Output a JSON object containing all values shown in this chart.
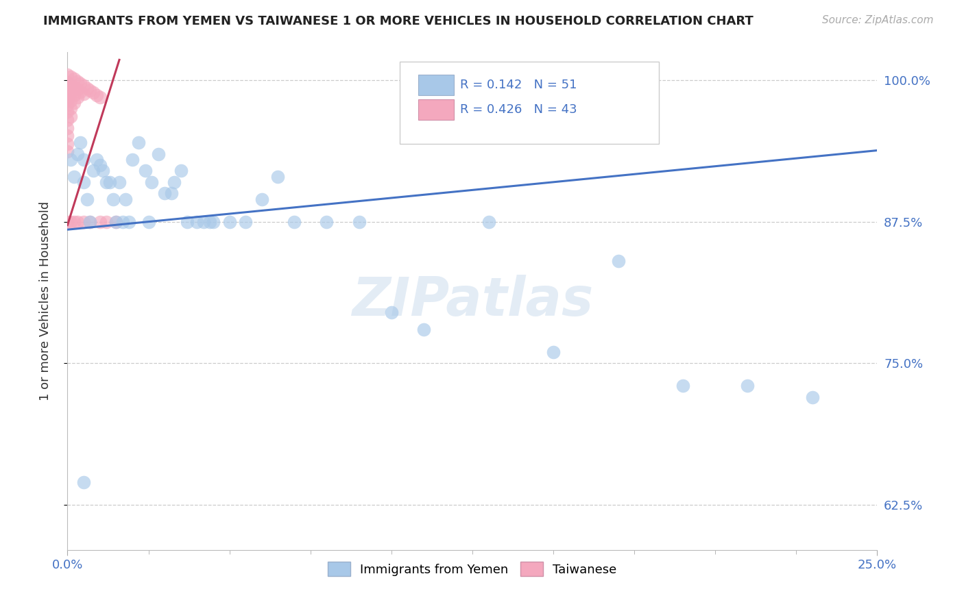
{
  "title": "IMMIGRANTS FROM YEMEN VS TAIWANESE 1 OR MORE VEHICLES IN HOUSEHOLD CORRELATION CHART",
  "source": "Source: ZipAtlas.com",
  "ylabel": "1 or more Vehicles in Household",
  "xlim": [
    0.0,
    0.25
  ],
  "ylim": [
    0.585,
    1.025
  ],
  "legend_blue_label": "Immigrants from Yemen",
  "legend_pink_label": "Taiwanese",
  "blue_R": "0.142",
  "blue_N": "51",
  "pink_R": "0.426",
  "pink_N": "43",
  "blue_color": "#a8c8e8",
  "pink_color": "#f4a8be",
  "blue_line_color": "#4472c4",
  "pink_line_color": "#c0395a",
  "ytick_vals": [
    0.625,
    0.75,
    0.875,
    1.0
  ],
  "ytick_labels": [
    "62.5%",
    "75.0%",
    "87.5%",
    "100.0%"
  ],
  "xtick_vals": [
    0.0,
    0.25
  ],
  "xtick_labels": [
    "0.0%",
    "25.0%"
  ],
  "blue_trend_x": [
    0.0,
    0.25
  ],
  "blue_trend_y": [
    0.868,
    0.938
  ],
  "pink_trend_x": [
    0.0,
    0.016
  ],
  "pink_trend_y": [
    0.872,
    1.018
  ],
  "blue_points": [
    [
      0.001,
      0.93
    ],
    [
      0.002,
      0.915
    ],
    [
      0.003,
      0.935
    ],
    [
      0.004,
      0.945
    ],
    [
      0.005,
      0.93
    ],
    [
      0.005,
      0.91
    ],
    [
      0.006,
      0.895
    ],
    [
      0.007,
      0.875
    ],
    [
      0.008,
      0.92
    ],
    [
      0.009,
      0.93
    ],
    [
      0.01,
      0.925
    ],
    [
      0.011,
      0.92
    ],
    [
      0.012,
      0.91
    ],
    [
      0.013,
      0.91
    ],
    [
      0.014,
      0.895
    ],
    [
      0.015,
      0.875
    ],
    [
      0.016,
      0.91
    ],
    [
      0.017,
      0.875
    ],
    [
      0.018,
      0.895
    ],
    [
      0.019,
      0.875
    ],
    [
      0.02,
      0.93
    ],
    [
      0.022,
      0.945
    ],
    [
      0.024,
      0.92
    ],
    [
      0.025,
      0.875
    ],
    [
      0.026,
      0.91
    ],
    [
      0.028,
      0.935
    ],
    [
      0.03,
      0.9
    ],
    [
      0.032,
      0.9
    ],
    [
      0.033,
      0.91
    ],
    [
      0.035,
      0.92
    ],
    [
      0.037,
      0.875
    ],
    [
      0.04,
      0.875
    ],
    [
      0.042,
      0.875
    ],
    [
      0.044,
      0.875
    ],
    [
      0.045,
      0.875
    ],
    [
      0.05,
      0.875
    ],
    [
      0.055,
      0.875
    ],
    [
      0.06,
      0.895
    ],
    [
      0.065,
      0.915
    ],
    [
      0.07,
      0.875
    ],
    [
      0.08,
      0.875
    ],
    [
      0.09,
      0.875
    ],
    [
      0.1,
      0.795
    ],
    [
      0.11,
      0.78
    ],
    [
      0.13,
      0.875
    ],
    [
      0.15,
      0.76
    ],
    [
      0.17,
      0.84
    ],
    [
      0.19,
      0.73
    ],
    [
      0.21,
      0.73
    ],
    [
      0.23,
      0.72
    ],
    [
      0.005,
      0.645
    ]
  ],
  "pink_points": [
    [
      0.0,
      1.005
    ],
    [
      0.0,
      0.998
    ],
    [
      0.0,
      0.993
    ],
    [
      0.0,
      0.988
    ],
    [
      0.0,
      0.983
    ],
    [
      0.0,
      0.978
    ],
    [
      0.0,
      0.972
    ],
    [
      0.0,
      0.965
    ],
    [
      0.0,
      0.958
    ],
    [
      0.0,
      0.951
    ],
    [
      0.0,
      0.944
    ],
    [
      0.0,
      0.937
    ],
    [
      0.001,
      1.003
    ],
    [
      0.001,
      0.996
    ],
    [
      0.001,
      0.989
    ],
    [
      0.001,
      0.982
    ],
    [
      0.001,
      0.975
    ],
    [
      0.001,
      0.968
    ],
    [
      0.002,
      1.001
    ],
    [
      0.002,
      0.994
    ],
    [
      0.002,
      0.987
    ],
    [
      0.002,
      0.98
    ],
    [
      0.003,
      0.999
    ],
    [
      0.003,
      0.992
    ],
    [
      0.003,
      0.985
    ],
    [
      0.004,
      0.997
    ],
    [
      0.004,
      0.99
    ],
    [
      0.005,
      0.995
    ],
    [
      0.005,
      0.988
    ],
    [
      0.006,
      0.993
    ],
    [
      0.007,
      0.991
    ],
    [
      0.008,
      0.989
    ],
    [
      0.009,
      0.987
    ],
    [
      0.01,
      0.985
    ],
    [
      0.0,
      0.875
    ],
    [
      0.001,
      0.875
    ],
    [
      0.002,
      0.875
    ],
    [
      0.003,
      0.875
    ],
    [
      0.005,
      0.875
    ],
    [
      0.007,
      0.875
    ],
    [
      0.01,
      0.875
    ],
    [
      0.012,
      0.875
    ],
    [
      0.015,
      0.875
    ]
  ]
}
